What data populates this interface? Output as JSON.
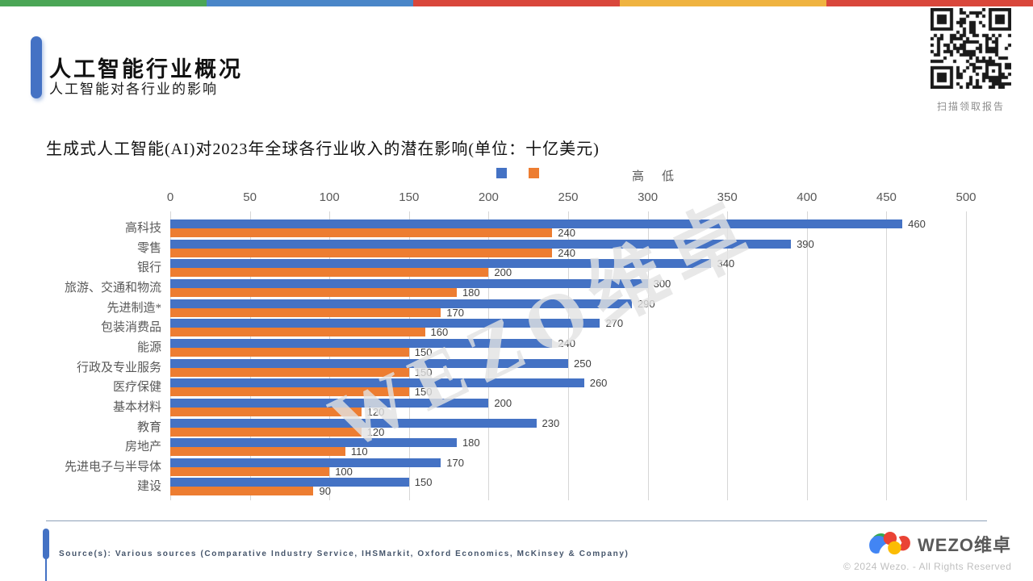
{
  "header": {
    "title": "人工智能行业概况",
    "subtitle": "人工智能对各行业的影响"
  },
  "qr": {
    "caption": "扫描领取报告"
  },
  "watermark": "WEZO维卓",
  "chart_data": {
    "type": "bar",
    "orientation": "horizontal",
    "title": "生成式人工智能(AI)对2023年全球各行业收入的潜在影响(单位：十亿美元)",
    "categories": [
      "高科技",
      "零售",
      "银行",
      "旅游、交通和物流",
      "先进制造*",
      "包装消费品",
      "能源",
      "行政及专业服务",
      "医疗保健",
      "基本材料",
      "教育",
      "房地产",
      "先进电子与半导体",
      "建设"
    ],
    "series": [
      {
        "name": "高",
        "color": "#4472C4",
        "values": [
          460,
          390,
          340,
          300,
          290,
          270,
          240,
          250,
          260,
          200,
          230,
          180,
          170,
          150
        ]
      },
      {
        "name": "低",
        "color": "#ED7D31",
        "values": [
          240,
          240,
          200,
          180,
          170,
          160,
          150,
          150,
          150,
          120,
          120,
          110,
          100,
          90
        ]
      }
    ],
    "xlim": [
      0,
      500
    ],
    "xticks": [
      0,
      50,
      100,
      150,
      200,
      250,
      300,
      350,
      400,
      450,
      500
    ],
    "grid": true,
    "legend_position": "top",
    "value_labels": true
  },
  "footer": {
    "source": "Source(s): Various sources (Comparative Industry Service, IHSMarkit, Oxford Economics, McKinsey & Company)",
    "brand": "WEZO维卓",
    "copyright": "© 2024 Wezo. - All Rights Reserved"
  },
  "colors": {
    "accent": "#4472C4",
    "bar_high": "#4472C4",
    "bar_low": "#ED7D31",
    "stripe": [
      "#4BA656",
      "#4A86C8",
      "#D9473B",
      "#EFB340",
      "#D9473B"
    ],
    "grid": "#D6D6D6",
    "text_muted": "#595959"
  }
}
